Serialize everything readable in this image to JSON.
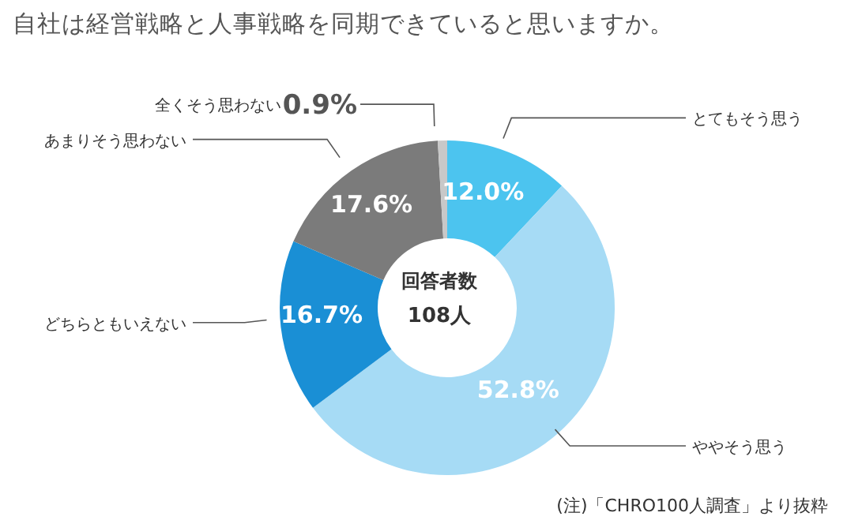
{
  "chart_data": {
    "type": "donut",
    "title": "自社は経営戦略と人事戦略を同期できていると思いますか。",
    "categories": [
      "とてもそう思う",
      "ややそう思う",
      "どちらともいえない",
      "あまりそう思わない",
      "全くそう思わない"
    ],
    "values": [
      12.0,
      52.8,
      16.7,
      17.6,
      0.9
    ],
    "colors": [
      "#4cc4ef",
      "#a6dbf5",
      "#1a8fd5",
      "#7b7b7b",
      "#c8c8c8"
    ],
    "value_labels": [
      "12.0%",
      "52.8%",
      "16.7%",
      "17.6%",
      "0.9%"
    ],
    "annotations": [
      "回答者数",
      "108人",
      "(注)「CHRO100人調査」より抜粋"
    ]
  }
}
